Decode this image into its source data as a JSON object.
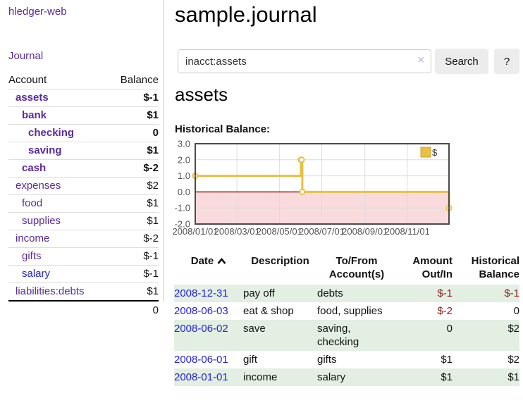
{
  "brand": "hledger-web",
  "nav": {
    "journal": "Journal"
  },
  "sidebar": {
    "header": {
      "account": "Account",
      "balance": "Balance"
    },
    "accounts": [
      {
        "name": "assets",
        "balance": "$-1",
        "depth": 1,
        "bold": true,
        "balance_tone": "neg-strong"
      },
      {
        "name": "bank",
        "balance": "$1",
        "depth": 2,
        "bold": true,
        "balance_tone": "normal"
      },
      {
        "name": "checking",
        "balance": "0",
        "depth": 3,
        "bold": true,
        "balance_tone": "normal"
      },
      {
        "name": "saving",
        "balance": "$1",
        "depth": 3,
        "bold": true,
        "balance_tone": "normal"
      },
      {
        "name": "cash",
        "balance": "$-2",
        "depth": 2,
        "bold": true,
        "balance_tone": "neg-strong"
      },
      {
        "name": "expenses",
        "balance": "$2",
        "depth": 1,
        "bold": false,
        "balance_tone": "normal"
      },
      {
        "name": "food",
        "balance": "$1",
        "depth": 2,
        "bold": false,
        "balance_tone": "normal"
      },
      {
        "name": "supplies",
        "balance": "$1",
        "depth": 2,
        "bold": false,
        "balance_tone": "normal"
      },
      {
        "name": "income",
        "balance": "$-2",
        "depth": 1,
        "bold": false,
        "balance_tone": "neg-muted"
      },
      {
        "name": "gifts",
        "balance": "$-1",
        "depth": 2,
        "bold": false,
        "balance_tone": "neg-muted"
      },
      {
        "name": "salary",
        "balance": "$-1",
        "depth": 2,
        "bold": false,
        "balance_tone": "neg-muted",
        "link_tone": "unvisited"
      },
      {
        "name": "liabilities:debts",
        "balance": "$1",
        "depth": 1,
        "bold": false,
        "balance_tone": "normal"
      }
    ],
    "total": "0"
  },
  "page": {
    "title": "sample.journal"
  },
  "search": {
    "value": "inacct:assets",
    "clear": "×",
    "search_label": "Search",
    "help_label": "?"
  },
  "account": {
    "heading": "assets",
    "chart_title": "Historical Balance:"
  },
  "chart_data": {
    "type": "line",
    "title": "Historical Balance",
    "style": "steps",
    "ylim": [
      -2,
      3
    ],
    "y_ticks": [
      3.0,
      2.0,
      1.0,
      0.0,
      -1.0,
      -2.0
    ],
    "x_range_days": [
      0,
      365
    ],
    "x_ticks": [
      {
        "label": "2008/01/01",
        "day": 0
      },
      {
        "label": "2008/03/01",
        "day": 60
      },
      {
        "label": "2008/05/01",
        "day": 121
      },
      {
        "label": "2008/07/01",
        "day": 182
      },
      {
        "label": "2008/09/01",
        "day": 244
      },
      {
        "label": "2008/11/01",
        "day": 305
      }
    ],
    "series": [
      {
        "name": "$",
        "color": "#e9c044",
        "points": [
          {
            "date": "2008-01-01",
            "day": 0,
            "value": 1
          },
          {
            "date": "2008-06-01",
            "day": 152,
            "value": 2
          },
          {
            "date": "2008-06-02",
            "day": 153,
            "value": 2
          },
          {
            "date": "2008-06-03",
            "day": 154,
            "value": 0
          },
          {
            "date": "2008-12-31",
            "day": 365,
            "value": -1
          }
        ]
      }
    ],
    "legend": {
      "label": "$",
      "position": "top-right"
    },
    "grid": true,
    "negative_region_color": "#f9dbde",
    "zero_line_color": "#8b0000",
    "grid_color": "#dcdcdc",
    "border_color": "#4a4a4a",
    "tick_label_color": "#545454"
  },
  "register": {
    "columns": [
      {
        "lines": [
          "Date"
        ],
        "align": "left",
        "sort": "asc"
      },
      {
        "lines": [
          "Description"
        ],
        "align": "left"
      },
      {
        "lines": [
          "To/From",
          "Account(s)"
        ],
        "align": "left"
      },
      {
        "lines": [
          "Amount",
          "Out/In"
        ],
        "align": "right"
      },
      {
        "lines": [
          "Historical",
          "Balance"
        ],
        "align": "right"
      }
    ],
    "rows": [
      {
        "date": "2008-12-31",
        "description": "pay off",
        "accounts": "debts",
        "amount": "$-1",
        "amount_neg": true,
        "balance": "$-1",
        "balance_neg": true
      },
      {
        "date": "2008-06-03",
        "description": "eat & shop",
        "accounts": "food, supplies",
        "amount": "$-2",
        "amount_neg": true,
        "balance": "0",
        "balance_neg": false
      },
      {
        "date": "2008-06-02",
        "description": "save",
        "accounts": "saving, checking",
        "amount": "0",
        "amount_neg": false,
        "balance": "$2",
        "balance_neg": false
      },
      {
        "date": "2008-06-01",
        "description": "gift",
        "accounts": "gifts",
        "amount": "$1",
        "amount_neg": false,
        "balance": "$2",
        "balance_neg": false
      },
      {
        "date": "2008-01-01",
        "description": "income",
        "accounts": "salary",
        "amount": "$1",
        "amount_neg": false,
        "balance": "$1",
        "balance_neg": false
      }
    ]
  },
  "colors": {
    "link_purple": "#5b2a9d",
    "link_blue": "#2222dd",
    "negative_strong": "#8c1f1f",
    "negative_muted": "#b26d74",
    "row_green": "#e2efe2",
    "series_gold": "#e9c044"
  }
}
